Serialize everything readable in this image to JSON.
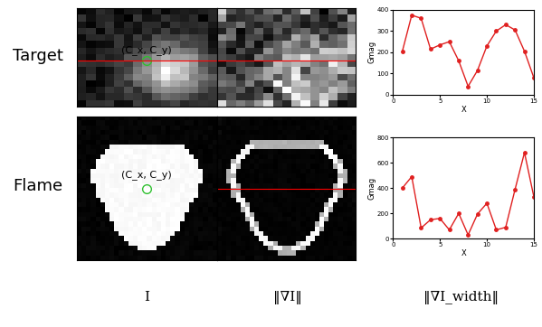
{
  "row_labels": [
    "Target",
    "Flame"
  ],
  "column_labels": [
    "I",
    "‖∇I‖",
    "‖∇I_width‖"
  ],
  "center_label": "(C_x, C_y)",
  "chart_data": [
    {
      "type": "line",
      "xlabel": "X",
      "ylabel": "Gmag",
      "color": "#e02020",
      "marker": "o",
      "x": [
        1,
        2,
        3,
        4,
        5,
        6,
        7,
        8,
        9,
        10,
        11,
        12,
        13,
        14,
        15
      ],
      "values": [
        205,
        375,
        360,
        215,
        235,
        250,
        160,
        40,
        115,
        230,
        300,
        330,
        305,
        205,
        80
      ],
      "xlim": [
        0,
        15
      ],
      "xticks": [
        0,
        5,
        10,
        15
      ],
      "ylim": [
        0,
        400
      ],
      "yticks": [
        0,
        100,
        200,
        300,
        400
      ]
    },
    {
      "type": "line",
      "xlabel": "X",
      "ylabel": "Gmag",
      "color": "#e02020",
      "marker": "o",
      "x": [
        1,
        2,
        3,
        4,
        5,
        6,
        7,
        8,
        9,
        10,
        11,
        12,
        13,
        14,
        15
      ],
      "values": [
        400,
        490,
        85,
        150,
        160,
        70,
        200,
        30,
        195,
        280,
        70,
        90,
        390,
        680,
        330
      ],
      "xlim": [
        0,
        15
      ],
      "xticks": [
        0,
        5,
        10,
        15
      ],
      "ylim": [
        0,
        800
      ],
      "yticks": [
        0,
        200,
        400,
        600,
        800
      ]
    }
  ]
}
